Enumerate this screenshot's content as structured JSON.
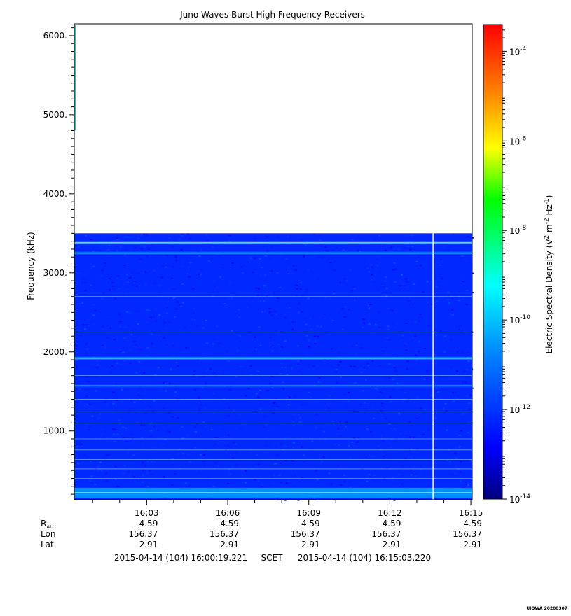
{
  "chart_data": {
    "type": "heatmap",
    "title": "Juno Waves Burst High Frequency Receivers",
    "ylabel": "Frequency (kHz)",
    "ylim": [
      130,
      6150
    ],
    "y_ticks": [
      {
        "value": 1000,
        "label": "1000."
      },
      {
        "value": 2000,
        "label": "2000."
      },
      {
        "value": 3000,
        "label": "3000."
      },
      {
        "value": 4000,
        "label": "4000."
      },
      {
        "value": 5000,
        "label": "5000."
      },
      {
        "value": 6000,
        "label": "6000."
      }
    ],
    "xlim_minutes": [
      0.32,
      15.05
    ],
    "x_ticks": [
      {
        "value": 3,
        "label": "16:03"
      },
      {
        "value": 6,
        "label": "16:06"
      },
      {
        "value": 9,
        "label": "16:09"
      },
      {
        "value": 12,
        "label": "16:12"
      },
      {
        "value": 15,
        "label": "16:15"
      }
    ],
    "colorbar": {
      "label_prefix": "Electric Spectral Density (V",
      "label_sup1": "2",
      "label_mid": " m",
      "label_sup2": "-2",
      "label_mid2": " Hz",
      "label_sup3": "-1",
      "label_suffix": ")",
      "scale": "log",
      "range_exp": [
        -14,
        -3.4
      ],
      "ticks": [
        {
          "exp": -14,
          "label": "-14"
        },
        {
          "exp": -12,
          "label": "-12"
        },
        {
          "exp": -10,
          "label": "-10"
        },
        {
          "exp": -8,
          "label": "-8"
        },
        {
          "exp": -6,
          "label": "-6"
        },
        {
          "exp": -4,
          "label": "-4"
        }
      ],
      "base": "10"
    },
    "data_upper_freq_khz": 3500,
    "background_level_exp": -12.2,
    "emission_lines": [
      {
        "freq_khz": 3380,
        "level_exp": -11.2
      },
      {
        "freq_khz": 3250,
        "level_exp": -11.0
      },
      {
        "freq_khz": 1920,
        "level_exp": -10.7
      },
      {
        "freq_khz": 1570,
        "level_exp": -11.6
      },
      {
        "freq_khz": 220,
        "level_exp": -10.5
      }
    ],
    "data_gap_minute": 13.6
  },
  "ephemeris": {
    "rows": [
      {
        "label": "R",
        "sub": "AU",
        "values": [
          "4.59",
          "4.59",
          "4.59",
          "4.59",
          "4.59"
        ]
      },
      {
        "label": "Lon",
        "sub": "",
        "values": [
          "156.37",
          "156.37",
          "156.37",
          "156.37",
          "156.37"
        ]
      },
      {
        "label": "Lat",
        "sub": "",
        "values": [
          "2.91",
          "2.91",
          "2.91",
          "2.91",
          "2.91"
        ]
      }
    ]
  },
  "time_range": {
    "start": "2015-04-14 (104) 16:00:19.221",
    "label": "SCET",
    "end": "2015-04-14 (104) 16:15:03.220"
  },
  "footer_stamp": "UIOWA 20200307"
}
